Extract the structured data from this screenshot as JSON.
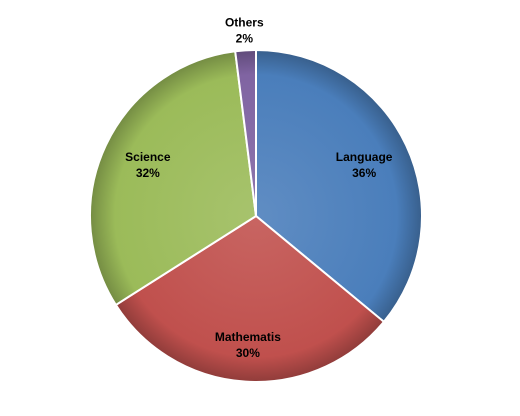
{
  "chart_data": {
    "type": "pie",
    "title": "",
    "slices": [
      {
        "label": "Language",
        "value": 36,
        "value_label": "36%",
        "color": "#4a7ebb"
      },
      {
        "label": "Mathematis",
        "value": 30,
        "value_label": "30%",
        "color": "#c0504d"
      },
      {
        "label": "Science",
        "value": 32,
        "value_label": "32%",
        "color": "#9bbb59"
      },
      {
        "label": "Others",
        "value": 2,
        "value_label": "2%",
        "color": "#8064a2"
      }
    ],
    "start": "top",
    "direction": "clockwise",
    "legend": "none"
  }
}
